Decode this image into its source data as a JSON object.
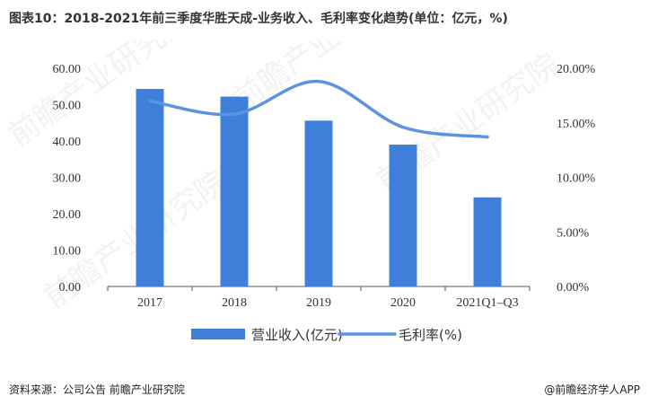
{
  "title": "图表10：2018-2021年前三季度华胜天成-业务收入、毛利率变化趋势(单位：亿元，%)",
  "source": "资料来源：公司公告 前瞻产业研究院",
  "brand": "@前瞻经济学人APP",
  "watermark": "前瞻产业研究院",
  "colors": {
    "bar": "#3f7fd9",
    "line": "#5b93e0",
    "axis": "#555555",
    "text": "#333333"
  },
  "chart_data": {
    "type": "bar",
    "categories": [
      "2017",
      "2018",
      "2019",
      "2020",
      "2021Q1–Q3"
    ],
    "series": [
      {
        "name": "营业收入(亿元)",
        "type": "bar",
        "axis": "left",
        "values": [
          54.3,
          52.2,
          45.6,
          39.0,
          24.5
        ]
      },
      {
        "name": "毛利率(%)",
        "type": "line",
        "axis": "right",
        "values": [
          17.0,
          15.8,
          18.8,
          14.6,
          13.7
        ]
      }
    ],
    "ylim": [
      0,
      60
    ],
    "y2lim": [
      0,
      20
    ],
    "left_ticks": [
      "0.00",
      "10.00",
      "20.00",
      "30.00",
      "40.00",
      "50.00",
      "60.00"
    ],
    "right_ticks": [
      "0.00%",
      "5.00%",
      "10.00%",
      "15.00%",
      "20.00%"
    ],
    "grid": false,
    "legend_position": "bottom"
  }
}
